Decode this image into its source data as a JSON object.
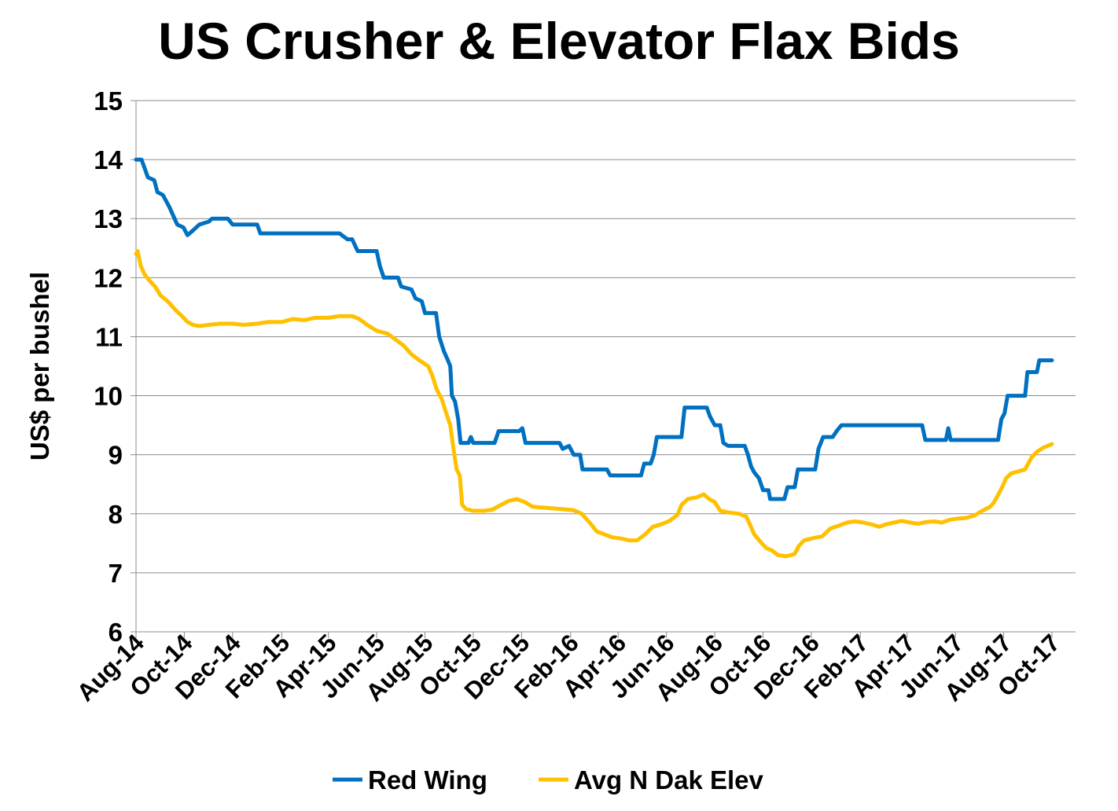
{
  "chart_data": {
    "type": "line",
    "title": "US Crusher & Elevator Flax Bids",
    "xlabel": "",
    "ylabel": "US$ per bushel",
    "ylim": [
      6,
      15
    ],
    "yticks": [
      6,
      7,
      8,
      9,
      10,
      11,
      12,
      13,
      14,
      15
    ],
    "xticks": [
      "Aug-14",
      "Oct-14",
      "Dec-14",
      "Feb-15",
      "Apr-15",
      "Jun-15",
      "Aug-15",
      "Oct-15",
      "Dec-15",
      "Feb-16",
      "Apr-16",
      "Jun-16",
      "Aug-16",
      "Oct-16",
      "Dec-16",
      "Feb-17",
      "Apr-17",
      "Jun-17",
      "Aug-17",
      "Oct-17"
    ],
    "grid": "horizontal",
    "legend_position": "bottom",
    "series": [
      {
        "name": "Red Wing",
        "color": "#0070C0",
        "points": [
          [
            "2014-08-01",
            14.0
          ],
          [
            "2014-08-08",
            14.0
          ],
          [
            "2014-08-12",
            13.85
          ],
          [
            "2014-08-16",
            13.7
          ],
          [
            "2014-08-24",
            13.65
          ],
          [
            "2014-08-28",
            13.45
          ],
          [
            "2014-09-04",
            13.4
          ],
          [
            "2014-09-12",
            13.2
          ],
          [
            "2014-09-22",
            12.9
          ],
          [
            "2014-09-30",
            12.85
          ],
          [
            "2014-10-05",
            12.72
          ],
          [
            "2014-10-12",
            12.8
          ],
          [
            "2014-10-20",
            12.9
          ],
          [
            "2014-11-01",
            12.95
          ],
          [
            "2014-11-05",
            13.0
          ],
          [
            "2014-11-25",
            13.0
          ],
          [
            "2014-12-01",
            12.9
          ],
          [
            "2015-01-01",
            12.9
          ],
          [
            "2015-01-05",
            12.75
          ],
          [
            "2015-03-05",
            12.75
          ],
          [
            "2015-04-15",
            12.75
          ],
          [
            "2015-04-25",
            12.65
          ],
          [
            "2015-05-01",
            12.65
          ],
          [
            "2015-05-08",
            12.45
          ],
          [
            "2015-06-01",
            12.45
          ],
          [
            "2015-06-05",
            12.2
          ],
          [
            "2015-06-10",
            12.0
          ],
          [
            "2015-06-28",
            12.0
          ],
          [
            "2015-07-02",
            11.85
          ],
          [
            "2015-07-15",
            11.8
          ],
          [
            "2015-07-20",
            11.65
          ],
          [
            "2015-07-28",
            11.6
          ],
          [
            "2015-08-01",
            11.4
          ],
          [
            "2015-08-15",
            11.4
          ],
          [
            "2015-08-19",
            11.0
          ],
          [
            "2015-08-25",
            10.75
          ],
          [
            "2015-08-30",
            10.6
          ],
          [
            "2015-09-02",
            10.5
          ],
          [
            "2015-09-04",
            10.0
          ],
          [
            "2015-09-08",
            9.9
          ],
          [
            "2015-09-12",
            9.6
          ],
          [
            "2015-09-15",
            9.2
          ],
          [
            "2015-09-25",
            9.2
          ],
          [
            "2015-09-28",
            9.3
          ],
          [
            "2015-10-01",
            9.2
          ],
          [
            "2015-10-28",
            9.2
          ],
          [
            "2015-11-02",
            9.4
          ],
          [
            "2015-11-28",
            9.4
          ],
          [
            "2015-12-02",
            9.45
          ],
          [
            "2015-12-06",
            9.2
          ],
          [
            "2016-01-18",
            9.2
          ],
          [
            "2016-01-22",
            9.1
          ],
          [
            "2016-01-30",
            9.15
          ],
          [
            "2016-02-05",
            9.0
          ],
          [
            "2016-02-13",
            9.0
          ],
          [
            "2016-02-16",
            8.75
          ],
          [
            "2016-03-18",
            8.75
          ],
          [
            "2016-03-22",
            8.65
          ],
          [
            "2016-04-30",
            8.65
          ],
          [
            "2016-05-04",
            8.85
          ],
          [
            "2016-05-12",
            8.85
          ],
          [
            "2016-05-16",
            9.0
          ],
          [
            "2016-05-20",
            9.3
          ],
          [
            "2016-06-20",
            9.3
          ],
          [
            "2016-06-24",
            9.8
          ],
          [
            "2016-07-22",
            9.8
          ],
          [
            "2016-07-26",
            9.65
          ],
          [
            "2016-08-01",
            9.5
          ],
          [
            "2016-08-08",
            9.5
          ],
          [
            "2016-08-12",
            9.2
          ],
          [
            "2016-08-18",
            9.15
          ],
          [
            "2016-09-08",
            9.15
          ],
          [
            "2016-09-12",
            9.0
          ],
          [
            "2016-09-16",
            8.8
          ],
          [
            "2016-09-20",
            8.7
          ],
          [
            "2016-09-26",
            8.6
          ],
          [
            "2016-10-01",
            8.4
          ],
          [
            "2016-10-08",
            8.4
          ],
          [
            "2016-10-10",
            8.25
          ],
          [
            "2016-10-28",
            8.25
          ],
          [
            "2016-11-01",
            8.45
          ],
          [
            "2016-11-10",
            8.45
          ],
          [
            "2016-11-14",
            8.75
          ],
          [
            "2016-12-06",
            8.75
          ],
          [
            "2016-12-10",
            9.1
          ],
          [
            "2016-12-16",
            9.3
          ],
          [
            "2016-12-28",
            9.3
          ],
          [
            "2017-01-02",
            9.4
          ],
          [
            "2017-01-08",
            9.5
          ],
          [
            "2017-04-20",
            9.5
          ],
          [
            "2017-04-24",
            9.25
          ],
          [
            "2017-05-20",
            9.25
          ],
          [
            "2017-05-23",
            9.45
          ],
          [
            "2017-05-26",
            9.25
          ],
          [
            "2017-07-25",
            9.25
          ],
          [
            "2017-07-29",
            9.6
          ],
          [
            "2017-08-02",
            9.7
          ],
          [
            "2017-08-06",
            10.0
          ],
          [
            "2017-08-28",
            10.0
          ],
          [
            "2017-08-31",
            10.4
          ],
          [
            "2017-09-12",
            10.4
          ],
          [
            "2017-09-15",
            10.6
          ],
          [
            "2017-10-01",
            10.6
          ]
        ]
      },
      {
        "name": "Avg N Dak Elev",
        "color": "#FFC000",
        "points": [
          [
            "2014-08-01",
            12.4
          ],
          [
            "2014-08-03",
            12.45
          ],
          [
            "2014-08-07",
            12.2
          ],
          [
            "2014-08-12",
            12.05
          ],
          [
            "2014-08-18",
            11.95
          ],
          [
            "2014-08-25",
            11.85
          ],
          [
            "2014-09-01",
            11.7
          ],
          [
            "2014-09-10",
            11.6
          ],
          [
            "2014-09-20",
            11.45
          ],
          [
            "2014-09-28",
            11.35
          ],
          [
            "2014-10-05",
            11.25
          ],
          [
            "2014-10-12",
            11.2
          ],
          [
            "2014-10-20",
            11.18
          ],
          [
            "2014-11-01",
            11.2
          ],
          [
            "2014-11-15",
            11.22
          ],
          [
            "2014-12-01",
            11.22
          ],
          [
            "2014-12-15",
            11.2
          ],
          [
            "2015-01-01",
            11.22
          ],
          [
            "2015-01-15",
            11.25
          ],
          [
            "2015-02-01",
            11.25
          ],
          [
            "2015-02-15",
            11.3
          ],
          [
            "2015-03-01",
            11.28
          ],
          [
            "2015-03-15",
            11.32
          ],
          [
            "2015-04-01",
            11.32
          ],
          [
            "2015-04-15",
            11.35
          ],
          [
            "2015-05-01",
            11.35
          ],
          [
            "2015-05-10",
            11.3
          ],
          [
            "2015-05-20",
            11.2
          ],
          [
            "2015-06-01",
            11.1
          ],
          [
            "2015-06-15",
            11.05
          ],
          [
            "2015-06-25",
            10.95
          ],
          [
            "2015-07-05",
            10.85
          ],
          [
            "2015-07-15",
            10.7
          ],
          [
            "2015-07-25",
            10.6
          ],
          [
            "2015-08-05",
            10.5
          ],
          [
            "2015-08-10",
            10.35
          ],
          [
            "2015-08-16",
            10.1
          ],
          [
            "2015-08-22",
            9.95
          ],
          [
            "2015-08-28",
            9.7
          ],
          [
            "2015-09-02",
            9.5
          ],
          [
            "2015-09-06",
            9.1
          ],
          [
            "2015-09-10",
            8.75
          ],
          [
            "2015-09-14",
            8.65
          ],
          [
            "2015-09-17",
            8.15
          ],
          [
            "2015-09-22",
            8.08
          ],
          [
            "2015-10-01",
            8.05
          ],
          [
            "2015-10-15",
            8.05
          ],
          [
            "2015-10-25",
            8.07
          ],
          [
            "2015-11-05",
            8.15
          ],
          [
            "2015-11-15",
            8.22
          ],
          [
            "2015-11-25",
            8.25
          ],
          [
            "2015-12-05",
            8.2
          ],
          [
            "2015-12-15",
            8.12
          ],
          [
            "2016-01-01",
            8.1
          ],
          [
            "2016-01-20",
            8.08
          ],
          [
            "2016-02-05",
            8.06
          ],
          [
            "2016-02-15",
            8.0
          ],
          [
            "2016-02-25",
            7.85
          ],
          [
            "2016-03-05",
            7.7
          ],
          [
            "2016-03-15",
            7.65
          ],
          [
            "2016-03-25",
            7.6
          ],
          [
            "2016-04-05",
            7.58
          ],
          [
            "2016-04-15",
            7.55
          ],
          [
            "2016-04-25",
            7.55
          ],
          [
            "2016-05-05",
            7.65
          ],
          [
            "2016-05-15",
            7.78
          ],
          [
            "2016-05-25",
            7.82
          ],
          [
            "2016-06-05",
            7.88
          ],
          [
            "2016-06-15",
            7.98
          ],
          [
            "2016-06-20",
            8.15
          ],
          [
            "2016-06-28",
            8.25
          ],
          [
            "2016-07-10",
            8.28
          ],
          [
            "2016-07-18",
            8.33
          ],
          [
            "2016-07-25",
            8.25
          ],
          [
            "2016-08-01",
            8.2
          ],
          [
            "2016-08-08",
            8.05
          ],
          [
            "2016-08-20",
            8.02
          ],
          [
            "2016-09-01",
            8.0
          ],
          [
            "2016-09-10",
            7.95
          ],
          [
            "2016-09-15",
            7.8
          ],
          [
            "2016-09-20",
            7.65
          ],
          [
            "2016-09-28",
            7.52
          ],
          [
            "2016-10-05",
            7.42
          ],
          [
            "2016-10-12",
            7.38
          ],
          [
            "2016-10-20",
            7.3
          ],
          [
            "2016-10-30",
            7.28
          ],
          [
            "2016-11-10",
            7.32
          ],
          [
            "2016-11-15",
            7.45
          ],
          [
            "2016-11-22",
            7.55
          ],
          [
            "2016-12-01",
            7.58
          ],
          [
            "2016-12-15",
            7.62
          ],
          [
            "2016-12-25",
            7.75
          ],
          [
            "2017-01-05",
            7.8
          ],
          [
            "2017-01-15",
            7.85
          ],
          [
            "2017-01-25",
            7.87
          ],
          [
            "2017-02-05",
            7.85
          ],
          [
            "2017-02-15",
            7.82
          ],
          [
            "2017-02-25",
            7.78
          ],
          [
            "2017-03-05",
            7.82
          ],
          [
            "2017-03-15",
            7.85
          ],
          [
            "2017-03-25",
            7.88
          ],
          [
            "2017-04-05",
            7.85
          ],
          [
            "2017-04-15",
            7.83
          ],
          [
            "2017-04-25",
            7.86
          ],
          [
            "2017-05-05",
            7.87
          ],
          [
            "2017-05-15",
            7.85
          ],
          [
            "2017-05-25",
            7.9
          ],
          [
            "2017-06-05",
            7.92
          ],
          [
            "2017-06-15",
            7.93
          ],
          [
            "2017-06-25",
            7.97
          ],
          [
            "2017-07-05",
            8.05
          ],
          [
            "2017-07-15",
            8.12
          ],
          [
            "2017-07-20",
            8.2
          ],
          [
            "2017-07-25",
            8.32
          ],
          [
            "2017-07-30",
            8.45
          ],
          [
            "2017-08-04",
            8.6
          ],
          [
            "2017-08-10",
            8.68
          ],
          [
            "2017-08-20",
            8.72
          ],
          [
            "2017-08-28",
            8.75
          ],
          [
            "2017-09-05",
            8.95
          ],
          [
            "2017-09-12",
            9.05
          ],
          [
            "2017-09-20",
            9.12
          ],
          [
            "2017-10-01",
            9.18
          ]
        ]
      }
    ]
  }
}
